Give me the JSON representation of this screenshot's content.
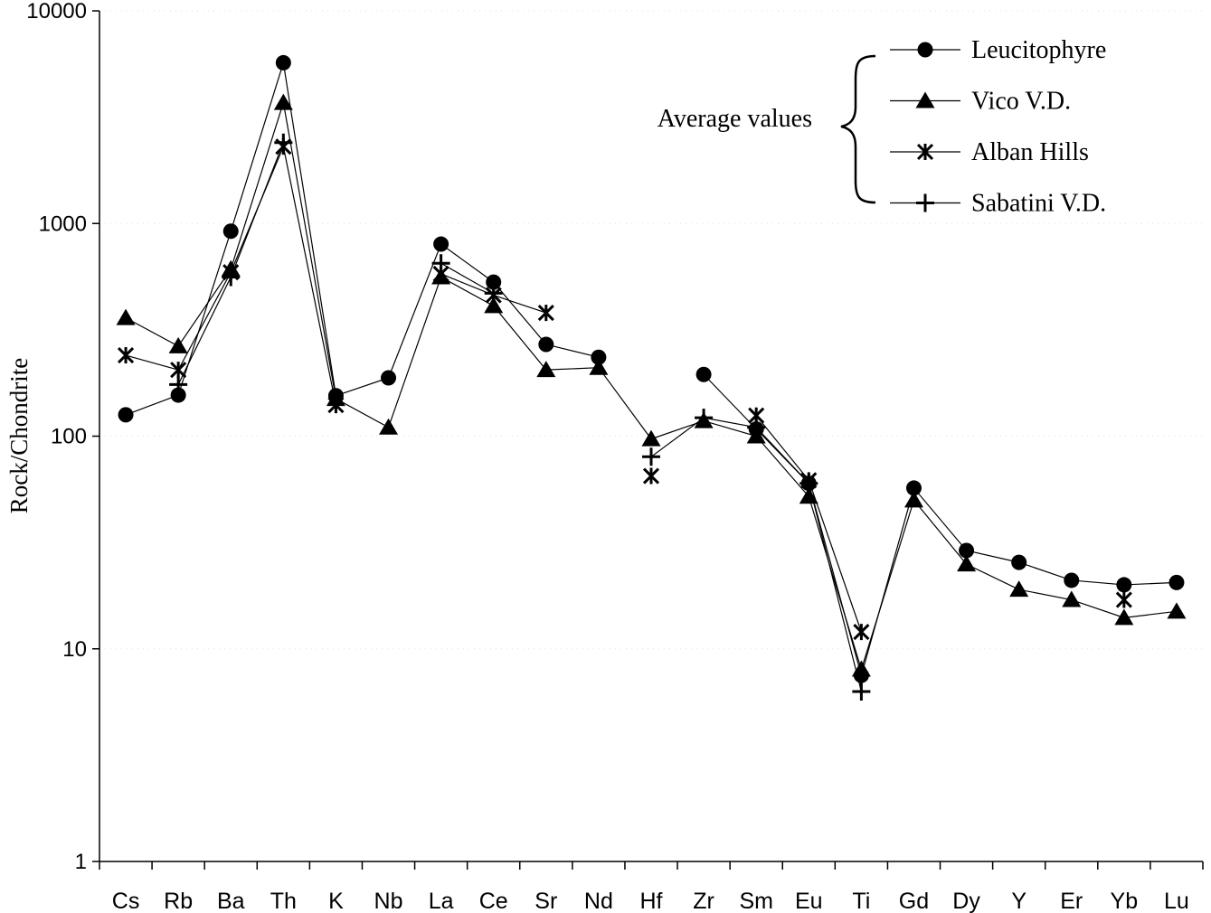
{
  "chart_data": {
    "type": "line",
    "title": "",
    "xlabel": "",
    "ylabel": "Rock/Chondrite",
    "yscale": "log",
    "ylim": [
      1,
      10000
    ],
    "yticks": [
      1,
      10,
      100,
      1000,
      10000
    ],
    "ytick_labels": [
      "1",
      "10",
      "100",
      "1000",
      "10000"
    ],
    "categories": [
      "Cs",
      "Rb",
      "Ba",
      "Th",
      "K",
      "Nb",
      "La",
      "Ce",
      "Sr",
      "Nd",
      "Hf",
      "Zr",
      "Sm",
      "Eu",
      "Ti",
      "Gd",
      "Dy",
      "Y",
      "Er",
      "Yb",
      "Lu"
    ],
    "legend_title": "Average values",
    "legend_position": "top-right",
    "series": [
      {
        "name": "Leucitophyre",
        "marker": "circle",
        "values": [
          126,
          156,
          920,
          5700,
          155,
          188,
          800,
          530,
          270,
          235,
          null,
          195,
          108,
          60,
          7.5,
          57,
          29,
          25.5,
          21,
          20,
          20.5
        ]
      },
      {
        "name": "Vico V.D.",
        "marker": "triangle",
        "values": [
          360,
          265,
          610,
          3700,
          150,
          110,
          560,
          410,
          205,
          210,
          97,
          118,
          100,
          52,
          8,
          50,
          25,
          19,
          17,
          14,
          15
        ]
      },
      {
        "name": "Alban Hills",
        "marker": "asterisk",
        "values": [
          240,
          205,
          590,
          2300,
          140,
          null,
          580,
          460,
          380,
          null,
          65,
          null,
          125,
          62,
          12,
          null,
          null,
          null,
          null,
          17,
          null
        ]
      },
      {
        "name": "Sabatini V.D.",
        "marker": "plus",
        "values": [
          null,
          175,
          560,
          2400,
          null,
          null,
          650,
          470,
          null,
          null,
          80,
          122,
          110,
          60,
          6.3,
          null,
          null,
          null,
          null,
          null,
          null
        ]
      }
    ]
  }
}
